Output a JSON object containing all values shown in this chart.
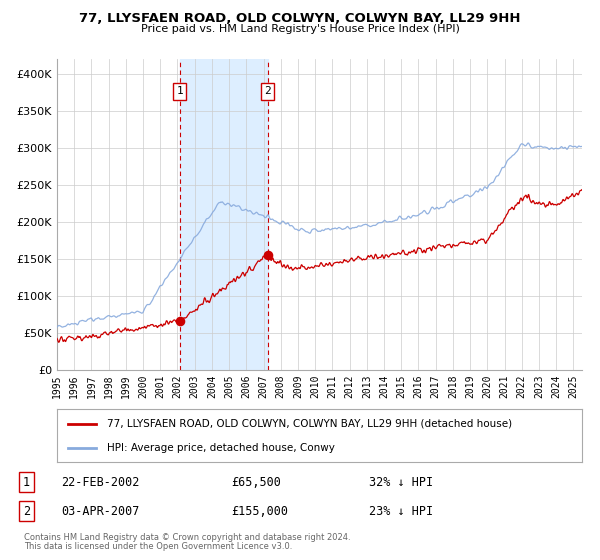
{
  "title": "77, LLYSFAEN ROAD, OLD COLWYN, COLWYN BAY, LL29 9HH",
  "subtitle": "Price paid vs. HM Land Registry's House Price Index (HPI)",
  "legend_red": "77, LLYSFAEN ROAD, OLD COLWYN, COLWYN BAY, LL29 9HH (detached house)",
  "legend_blue": "HPI: Average price, detached house, Conwy",
  "transaction1_date": "22-FEB-2002",
  "transaction1_price": "£65,500",
  "transaction1_hpi": "32% ↓ HPI",
  "transaction2_date": "03-APR-2007",
  "transaction2_price": "£155,000",
  "transaction2_hpi": "23% ↓ HPI",
  "footnote1": "Contains HM Land Registry data © Crown copyright and database right 2024.",
  "footnote2": "This data is licensed under the Open Government Licence v3.0.",
  "red_color": "#cc0000",
  "blue_color": "#88aadd",
  "shade_color": "#ddeeff",
  "vline_color": "#cc0000",
  "grid_color": "#cccccc",
  "background_color": "#ffffff",
  "ylim": [
    0,
    420000
  ],
  "yticks": [
    0,
    50000,
    100000,
    150000,
    200000,
    250000,
    300000,
    350000,
    400000
  ],
  "ytick_labels": [
    "£0",
    "£50K",
    "£100K",
    "£150K",
    "£200K",
    "£250K",
    "£300K",
    "£350K",
    "£400K"
  ],
  "xmin": 1995.0,
  "xmax": 2025.5,
  "transaction1_x": 2002.13,
  "transaction1_y": 65500,
  "transaction2_x": 2007.25,
  "transaction2_y": 155000
}
